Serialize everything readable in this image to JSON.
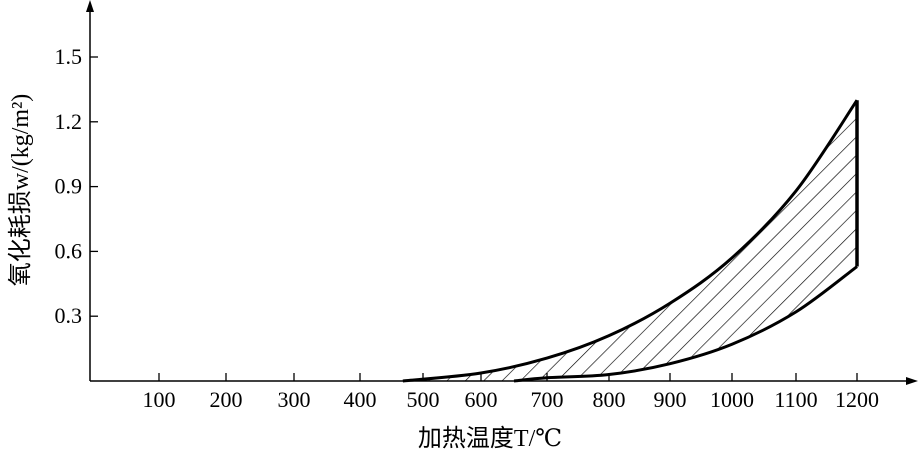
{
  "chart_data": {
    "type": "area",
    "title": "",
    "xlabel": "加热温度T/℃",
    "ylabel": "氧化耗损w/(kg/m²)",
    "x_ticks": [
      100,
      200,
      300,
      400,
      500,
      600,
      700,
      800,
      900,
      1000,
      1100,
      1200
    ],
    "y_ticks": [
      0.3,
      0.6,
      0.9,
      1.2,
      1.5
    ],
    "ylim": [
      0,
      1.7
    ],
    "xlim": [
      0,
      1250
    ],
    "grid": false,
    "fill": "hatched band between upper and lower bounds",
    "series": [
      {
        "x": [
          468,
          600,
          700,
          800,
          900,
          1000,
          1100,
          1200
        ],
        "y": [
          0,
          0.037,
          0.106,
          0.21,
          0.36,
          0.57,
          0.88,
          1.3
        ]
      },
      {
        "x": [
          650,
          700,
          800,
          900,
          1000,
          1100,
          1200
        ],
        "y": [
          0,
          0.015,
          0.03,
          0.08,
          0.17,
          0.32,
          0.53
        ]
      }
    ],
    "color": "#000000"
  }
}
